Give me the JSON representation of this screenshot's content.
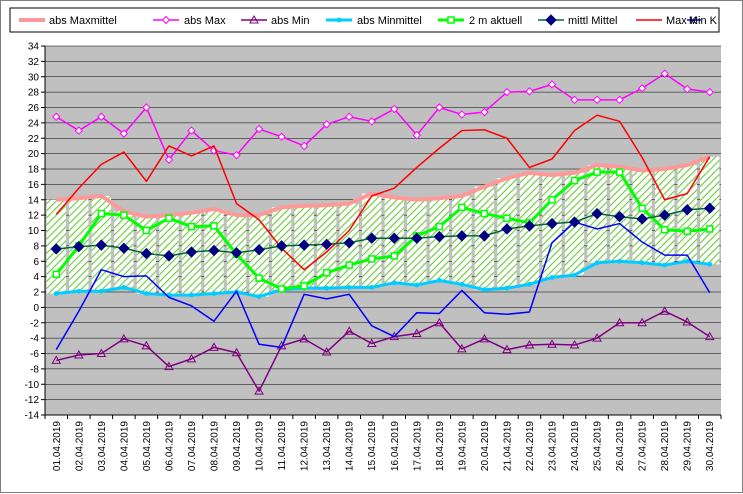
{
  "chart_data": {
    "type": "line",
    "title": "",
    "xlabel": "",
    "ylabel": "",
    "ylim": [
      -14,
      34
    ],
    "ytick_step": 2,
    "grid": "horizontal",
    "legend_placement": "top",
    "plot_background": "#c0c0c0",
    "band_colors": {
      "fill": "#ffffff",
      "hatch": "#66cc33"
    },
    "categories": [
      "01.04.2019",
      "02.04.2019",
      "03.04.2019",
      "04.04.2019",
      "05.04.2019",
      "06.04.2019",
      "07.04.2019",
      "08.04.2019",
      "09.04.2019",
      "10.04.2019",
      "11.04.2019",
      "12.04.2019",
      "13.04.2019",
      "14.04.2019",
      "15.04.2019",
      "16.04.2019",
      "17.04.2019",
      "18.04.2019",
      "19.04.2019",
      "20.04.2019",
      "21.04.2019",
      "22.04.2019",
      "23.04.2019",
      "24.04.2019",
      "25.04.2019",
      "26.04.2019",
      "27.04.2019",
      "28.04.2019",
      "29.04.2019",
      "30.04.2019"
    ],
    "series": [
      {
        "name": "abs Maxmittel",
        "color": "#ff9999",
        "marker": "none",
        "width": 4,
        "values": [
          14.0,
          14.2,
          14.5,
          12.5,
          11.8,
          12.0,
          12.3,
          12.8,
          12.0,
          12.0,
          13.0,
          13.2,
          13.3,
          13.5,
          14.8,
          14.3,
          14.0,
          14.2,
          14.5,
          15.7,
          16.8,
          17.5,
          17.2,
          17.5,
          18.5,
          18.3,
          17.8,
          18.0,
          18.5,
          19.6
        ]
      },
      {
        "name": "abs Max",
        "color": "#ff00ff",
        "marker": "diamond-open",
        "width": 1.5,
        "values": [
          24.8,
          23.0,
          24.8,
          22.6,
          26.0,
          19.2,
          23.0,
          20.4,
          19.8,
          23.2,
          22.2,
          21.0,
          23.8,
          24.8,
          24.2,
          25.8,
          22.4,
          26.0,
          25.1,
          25.4,
          28.0,
          28.1,
          29.0,
          27.0,
          27.0,
          27.0,
          28.5,
          30.4,
          28.4,
          28.0
        ]
      },
      {
        "name": "abs Min",
        "color": "#800080",
        "marker": "triangle-open",
        "width": 1.5,
        "values": [
          -6.9,
          -6.2,
          -6.0,
          -4.1,
          -5.0,
          -7.7,
          -6.7,
          -5.2,
          -5.9,
          -10.9,
          -5.0,
          -4.1,
          -5.8,
          -3.1,
          -4.7,
          -3.8,
          -3.4,
          -2.0,
          -5.4,
          -4.1,
          -5.5,
          -4.9,
          -4.8,
          -4.9,
          -4.0,
          -2.0,
          -2.0,
          -0.5,
          -1.9,
          -3.8
        ]
      },
      {
        "name": "abs Minmittel",
        "color": "#00ccff",
        "marker": "dot",
        "width": 3,
        "values": [
          1.8,
          2.1,
          2.1,
          2.6,
          1.8,
          1.6,
          1.6,
          1.8,
          2.0,
          1.4,
          2.3,
          2.5,
          2.5,
          2.6,
          2.6,
          3.2,
          2.9,
          3.5,
          3.0,
          2.3,
          2.5,
          3.0,
          3.9,
          4.2,
          5.8,
          6.0,
          5.8,
          5.5,
          6.0,
          5.6
        ]
      },
      {
        "name": "2 m aktuell",
        "color": "#00ff00",
        "marker": "square-open",
        "width": 3,
        "values": [
          4.3,
          8.0,
          12.2,
          12.0,
          10.0,
          11.6,
          10.5,
          10.6,
          6.9,
          3.8,
          2.4,
          2.8,
          4.5,
          5.5,
          6.3,
          6.7,
          9.3,
          10.5,
          13.0,
          12.2,
          11.6,
          11.0,
          14.0,
          16.5,
          17.6,
          17.6,
          12.9,
          10.1,
          9.9,
          10.2
        ]
      },
      {
        "name": "mittl Mittel",
        "color": "#006633",
        "marker": "diamond-filled",
        "markerColor": "#000080",
        "width": 1.5,
        "values": [
          7.6,
          7.9,
          8.1,
          7.7,
          7.0,
          6.7,
          7.2,
          7.4,
          7.1,
          7.5,
          8.0,
          8.1,
          8.2,
          8.4,
          9.0,
          9.0,
          9.0,
          9.2,
          9.3,
          9.3,
          10.2,
          10.6,
          10.9,
          11.1,
          12.2,
          11.8,
          11.5,
          12.0,
          12.7,
          12.9
        ]
      },
      {
        "name": "Max K",
        "color": "#ff0000",
        "marker": "none",
        "width": 1.5,
        "values": [
          12.1,
          15.5,
          18.6,
          20.2,
          16.4,
          21.0,
          19.7,
          21.0,
          13.5,
          11.4,
          7.7,
          4.9,
          7.2,
          10.0,
          14.5,
          15.5,
          18.2,
          20.7,
          23.0,
          23.1,
          22.0,
          18.2,
          19.3,
          23.0,
          25.0,
          24.2,
          19.5,
          14.0,
          14.8,
          19.6
        ]
      },
      {
        "name": "Min K",
        "color": "#0000ff",
        "marker": "none",
        "width": 1.5,
        "values": [
          -5.5,
          -0.5,
          4.9,
          4.0,
          4.1,
          1.3,
          0.2,
          -1.8,
          2.1,
          -4.8,
          -5.2,
          1.7,
          1.1,
          1.7,
          -2.4,
          -3.8,
          -0.7,
          -0.8,
          2.2,
          -0.7,
          -0.9,
          -0.6,
          8.4,
          11.1,
          10.2,
          10.9,
          8.5,
          6.8,
          6.8,
          1.9
        ]
      }
    ]
  }
}
